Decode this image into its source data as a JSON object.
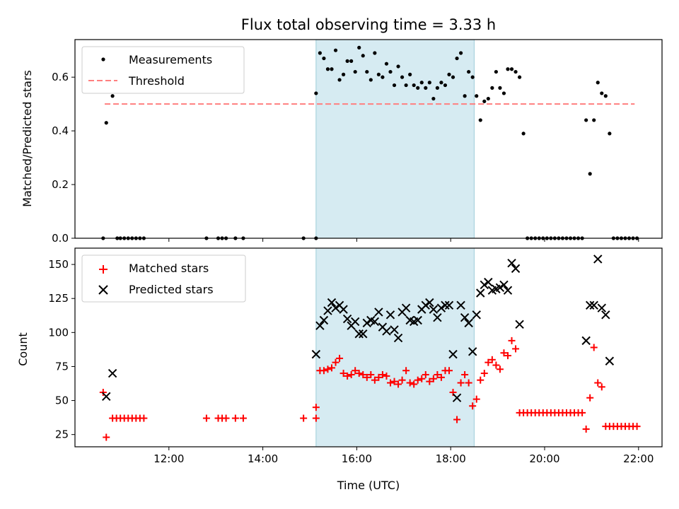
{
  "chart_data": {
    "title": "Flux total observing time = 3.33 h",
    "shaded_interval": [
      "15:08",
      "18:30"
    ],
    "shade_color": "#add8e6",
    "top": {
      "type": "scatter",
      "ylabel": "Matched/Predicted stars",
      "ylim": [
        0,
        0.74
      ],
      "yticks": [
        "0.0",
        "0.2",
        "0.4",
        "0.6"
      ],
      "legend_position": "upper-left",
      "series": [
        {
          "name": "Measurements",
          "color": "#000000"
        },
        {
          "name": "Threshold",
          "color": "#ff7f7f",
          "style": "dashed",
          "value": 0.5,
          "x_range": [
            "10:38",
            "21:55"
          ]
        }
      ],
      "points": [
        [
          "10:36",
          0.0
        ],
        [
          "10:40",
          0.43
        ],
        [
          "10:48",
          0.53
        ],
        [
          "10:54",
          0.0
        ],
        [
          "10:58",
          0.0
        ],
        [
          "11:03",
          0.0
        ],
        [
          "11:08",
          0.0
        ],
        [
          "11:13",
          0.0
        ],
        [
          "11:18",
          0.0
        ],
        [
          "11:23",
          0.0
        ],
        [
          "11:28",
          0.0
        ],
        [
          "12:48",
          0.0
        ],
        [
          "13:03",
          0.0
        ],
        [
          "13:08",
          0.0
        ],
        [
          "13:13",
          0.0
        ],
        [
          "13:25",
          0.0
        ],
        [
          "13:35",
          0.0
        ],
        [
          "14:52",
          0.0
        ],
        [
          "15:08",
          0.0
        ],
        [
          "15:08",
          0.54
        ],
        [
          "15:13",
          0.69
        ],
        [
          "15:18",
          0.67
        ],
        [
          "15:23",
          0.63
        ],
        [
          "15:28",
          0.63
        ],
        [
          "15:33",
          0.7
        ],
        [
          "15:38",
          0.59
        ],
        [
          "15:43",
          0.61
        ],
        [
          "15:48",
          0.66
        ],
        [
          "15:53",
          0.66
        ],
        [
          "15:58",
          0.62
        ],
        [
          "16:03",
          0.71
        ],
        [
          "16:08",
          0.68
        ],
        [
          "16:13",
          0.62
        ],
        [
          "16:18",
          0.59
        ],
        [
          "16:23",
          0.69
        ],
        [
          "16:28",
          0.61
        ],
        [
          "16:33",
          0.6
        ],
        [
          "16:38",
          0.65
        ],
        [
          "16:43",
          0.62
        ],
        [
          "16:48",
          0.57
        ],
        [
          "16:53",
          0.64
        ],
        [
          "16:58",
          0.6
        ],
        [
          "17:03",
          0.57
        ],
        [
          "17:08",
          0.61
        ],
        [
          "17:13",
          0.57
        ],
        [
          "17:18",
          0.56
        ],
        [
          "17:23",
          0.58
        ],
        [
          "17:28",
          0.56
        ],
        [
          "17:33",
          0.58
        ],
        [
          "17:38",
          0.52
        ],
        [
          "17:43",
          0.56
        ],
        [
          "17:48",
          0.58
        ],
        [
          "17:53",
          0.57
        ],
        [
          "17:58",
          0.61
        ],
        [
          "18:03",
          0.6
        ],
        [
          "18:08",
          0.67
        ],
        [
          "18:13",
          0.69
        ],
        [
          "18:18",
          0.53
        ],
        [
          "18:23",
          0.62
        ],
        [
          "18:28",
          0.6
        ],
        [
          "18:33",
          0.53
        ],
        [
          "18:38",
          0.44
        ],
        [
          "18:43",
          0.51
        ],
        [
          "18:48",
          0.52
        ],
        [
          "18:53",
          0.56
        ],
        [
          "18:58",
          0.62
        ],
        [
          "19:03",
          0.56
        ],
        [
          "19:08",
          0.54
        ],
        [
          "19:13",
          0.63
        ],
        [
          "19:18",
          0.63
        ],
        [
          "19:23",
          0.62
        ],
        [
          "19:28",
          0.6
        ],
        [
          "19:33",
          0.39
        ],
        [
          "19:38",
          0.0
        ],
        [
          "19:43",
          0.0
        ],
        [
          "19:48",
          0.0
        ],
        [
          "19:53",
          0.0
        ],
        [
          "19:58",
          0.0
        ],
        [
          "20:03",
          0.0
        ],
        [
          "20:08",
          0.0
        ],
        [
          "20:13",
          0.0
        ],
        [
          "20:18",
          0.0
        ],
        [
          "20:23",
          0.0
        ],
        [
          "20:28",
          0.0
        ],
        [
          "20:33",
          0.0
        ],
        [
          "20:38",
          0.0
        ],
        [
          "20:43",
          0.0
        ],
        [
          "20:48",
          0.0
        ],
        [
          "20:53",
          0.44
        ],
        [
          "20:58",
          0.24
        ],
        [
          "21:03",
          0.44
        ],
        [
          "21:08",
          0.58
        ],
        [
          "21:13",
          0.54
        ],
        [
          "21:18",
          0.53
        ],
        [
          "21:23",
          0.39
        ],
        [
          "21:28",
          0.0
        ],
        [
          "21:33",
          0.0
        ],
        [
          "21:38",
          0.0
        ],
        [
          "21:43",
          0.0
        ],
        [
          "21:48",
          0.0
        ],
        [
          "21:53",
          0.0
        ],
        [
          "21:58",
          0.0
        ]
      ]
    },
    "bottom": {
      "type": "scatter",
      "xlabel": "Time (UTC)",
      "ylabel": "Count",
      "ylim": [
        16,
        162
      ],
      "yticks": [
        25,
        50,
        75,
        100,
        125,
        150
      ],
      "xlim": [
        "10:00",
        "22:30"
      ],
      "xticks": [
        "12:00",
        "14:00",
        "16:00",
        "18:00",
        "20:00",
        "22:00"
      ],
      "legend_position": "upper-left",
      "series": [
        {
          "name": "Matched stars",
          "marker": "plus",
          "color": "#ff0000",
          "points": [
            [
              "10:36",
              56
            ],
            [
              "10:40",
              23
            ],
            [
              "10:48",
              37
            ],
            [
              "10:53",
              37
            ],
            [
              "10:58",
              37
            ],
            [
              "11:03",
              37
            ],
            [
              "11:08",
              37
            ],
            [
              "11:13",
              37
            ],
            [
              "11:18",
              37
            ],
            [
              "11:23",
              37
            ],
            [
              "11:28",
              37
            ],
            [
              "12:48",
              37
            ],
            [
              "13:03",
              37
            ],
            [
              "13:08",
              37
            ],
            [
              "13:13",
              37
            ],
            [
              "13:25",
              37
            ],
            [
              "13:35",
              37
            ],
            [
              "14:52",
              37
            ],
            [
              "15:08",
              37
            ],
            [
              "15:08",
              45
            ],
            [
              "15:13",
              72
            ],
            [
              "15:18",
              72
            ],
            [
              "15:23",
              73
            ],
            [
              "15:28",
              74
            ],
            [
              "15:33",
              78
            ],
            [
              "15:38",
              81
            ],
            [
              "15:43",
              70
            ],
            [
              "15:48",
              68
            ],
            [
              "15:53",
              69
            ],
            [
              "15:58",
              72
            ],
            [
              "16:03",
              70
            ],
            [
              "16:08",
              69
            ],
            [
              "16:13",
              67
            ],
            [
              "16:18",
              69
            ],
            [
              "16:23",
              65
            ],
            [
              "16:28",
              67
            ],
            [
              "16:33",
              69
            ],
            [
              "16:38",
              68
            ],
            [
              "16:43",
              63
            ],
            [
              "16:48",
              64
            ],
            [
              "16:53",
              62
            ],
            [
              "16:58",
              65
            ],
            [
              "17:03",
              72
            ],
            [
              "17:08",
              63
            ],
            [
              "17:13",
              62
            ],
            [
              "17:18",
              65
            ],
            [
              "17:23",
              66
            ],
            [
              "17:28",
              69
            ],
            [
              "17:33",
              64
            ],
            [
              "17:38",
              66
            ],
            [
              "17:43",
              69
            ],
            [
              "17:48",
              67
            ],
            [
              "17:53",
              72
            ],
            [
              "17:58",
              72
            ],
            [
              "18:03",
              56
            ],
            [
              "18:08",
              36
            ],
            [
              "18:13",
              63
            ],
            [
              "18:18",
              69
            ],
            [
              "18:23",
              63
            ],
            [
              "18:28",
              46
            ],
            [
              "18:33",
              51
            ],
            [
              "18:38",
              65
            ],
            [
              "18:43",
              70
            ],
            [
              "18:48",
              78
            ],
            [
              "18:53",
              80
            ],
            [
              "18:58",
              76
            ],
            [
              "19:03",
              73
            ],
            [
              "19:08",
              85
            ],
            [
              "19:13",
              83
            ],
            [
              "19:18",
              94
            ],
            [
              "19:23",
              88
            ],
            [
              "19:28",
              41
            ],
            [
              "19:33",
              41
            ],
            [
              "19:38",
              41
            ],
            [
              "19:43",
              41
            ],
            [
              "19:48",
              41
            ],
            [
              "19:53",
              41
            ],
            [
              "19:58",
              41
            ],
            [
              "20:03",
              41
            ],
            [
              "20:08",
              41
            ],
            [
              "20:13",
              41
            ],
            [
              "20:18",
              41
            ],
            [
              "20:23",
              41
            ],
            [
              "20:28",
              41
            ],
            [
              "20:33",
              41
            ],
            [
              "20:38",
              41
            ],
            [
              "20:43",
              41
            ],
            [
              "20:48",
              41
            ],
            [
              "20:53",
              29
            ],
            [
              "20:58",
              52
            ],
            [
              "21:03",
              89
            ],
            [
              "21:08",
              63
            ],
            [
              "21:13",
              60
            ],
            [
              "21:18",
              31
            ],
            [
              "21:23",
              31
            ],
            [
              "21:28",
              31
            ],
            [
              "21:33",
              31
            ],
            [
              "21:38",
              31
            ],
            [
              "21:43",
              31
            ],
            [
              "21:48",
              31
            ],
            [
              "21:53",
              31
            ],
            [
              "21:58",
              31
            ]
          ]
        },
        {
          "name": "Predicted stars",
          "marker": "x",
          "color": "#000000",
          "points": [
            [
              "10:40",
              53
            ],
            [
              "10:48",
              70
            ],
            [
              "15:08",
              84
            ],
            [
              "15:13",
              105
            ],
            [
              "15:18",
              109
            ],
            [
              "15:23",
              116
            ],
            [
              "15:28",
              122
            ],
            [
              "15:33",
              118
            ],
            [
              "15:38",
              120
            ],
            [
              "15:43",
              117
            ],
            [
              "15:48",
              110
            ],
            [
              "15:53",
              105
            ],
            [
              "15:58",
              108
            ],
            [
              "16:03",
              99
            ],
            [
              "16:08",
              99
            ],
            [
              "16:13",
              107
            ],
            [
              "16:18",
              109
            ],
            [
              "16:23",
              108
            ],
            [
              "16:28",
              115
            ],
            [
              "16:33",
              104
            ],
            [
              "16:38",
              101
            ],
            [
              "16:43",
              113
            ],
            [
              "16:48",
              102
            ],
            [
              "16:53",
              96
            ],
            [
              "16:58",
              115
            ],
            [
              "17:03",
              118
            ],
            [
              "17:08",
              109
            ],
            [
              "17:13",
              108
            ],
            [
              "17:18",
              109
            ],
            [
              "17:23",
              117
            ],
            [
              "17:28",
              120
            ],
            [
              "17:33",
              122
            ],
            [
              "17:38",
              117
            ],
            [
              "17:43",
              111
            ],
            [
              "17:48",
              118
            ],
            [
              "17:53",
              120
            ],
            [
              "17:58",
              120
            ],
            [
              "18:03",
              84
            ],
            [
              "18:08",
              52
            ],
            [
              "18:13",
              120
            ],
            [
              "18:18",
              111
            ],
            [
              "18:23",
              107
            ],
            [
              "18:28",
              86
            ],
            [
              "18:33",
              113
            ],
            [
              "18:38",
              129
            ],
            [
              "18:43",
              135
            ],
            [
              "18:48",
              137
            ],
            [
              "18:53",
              131
            ],
            [
              "18:58",
              132
            ],
            [
              "19:03",
              133
            ],
            [
              "19:08",
              135
            ],
            [
              "19:13",
              131
            ],
            [
              "19:18",
              151
            ],
            [
              "19:23",
              147
            ],
            [
              "19:28",
              106
            ],
            [
              "20:53",
              94
            ],
            [
              "20:58",
              120
            ],
            [
              "21:03",
              120
            ],
            [
              "21:08",
              154
            ],
            [
              "21:13",
              118
            ],
            [
              "21:18",
              113
            ],
            [
              "21:23",
              79
            ]
          ]
        }
      ]
    }
  }
}
